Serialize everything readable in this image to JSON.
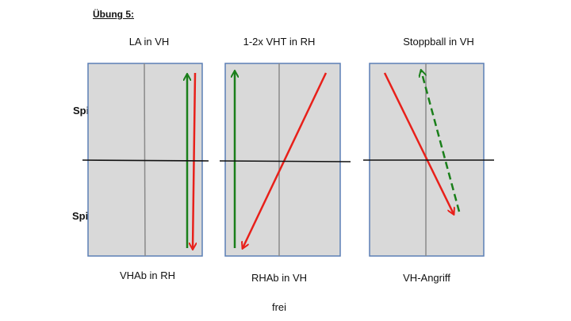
{
  "title": "Übung 5:",
  "players": {
    "b": "Spieler B",
    "a": "Spieler A"
  },
  "exercises": [
    {
      "top_label": "LA in VH",
      "bottom_label": "VHAb in RH"
    },
    {
      "top_label": "1-2x VHT in RH",
      "bottom_label": "RHAb in VH"
    },
    {
      "top_label": "Stoppball in VH",
      "bottom_label": "VH-Angriff"
    }
  ],
  "footer": "frei",
  "colors": {
    "table_fill": "#d9d9d9",
    "table_border": "#5b7fb5",
    "center_line": "#8a8a8a",
    "net": "#111111",
    "green_arrow": "#1a7f1a",
    "red_arrow": "#e8201a"
  }
}
